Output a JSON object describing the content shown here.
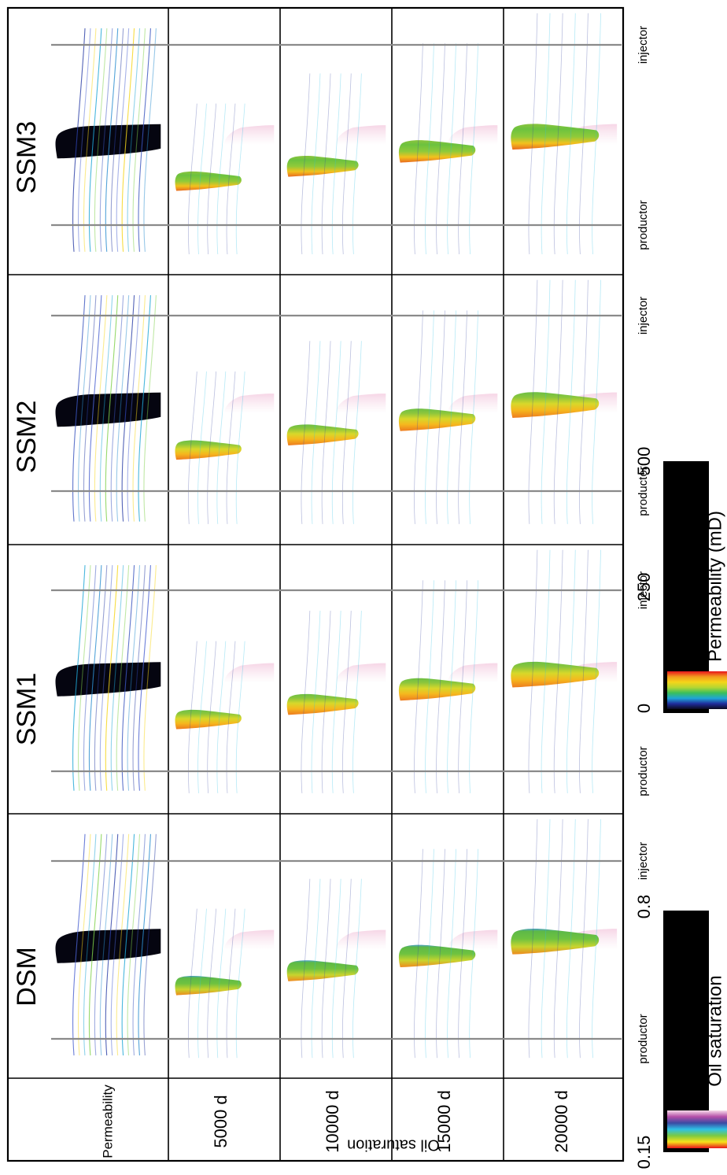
{
  "columns": [
    "DSM",
    "SSM1",
    "SSM2",
    "SSM3"
  ],
  "rows": {
    "group_label": "Oil saturation",
    "permeability_label": "Permeability",
    "times": [
      "5000 d",
      "10000 d",
      "15000 d",
      "20000 d"
    ]
  },
  "well_labels": {
    "left": "injector",
    "right": "productor"
  },
  "colorbars": {
    "oil_saturation": {
      "title": "Oil saturation",
      "min_label": "0.15",
      "max_label": "0.8",
      "stops": [
        "#e8141c",
        "#f7e21a",
        "#7ac943",
        "#2fc1e6",
        "#3b4ba3",
        "#b44ea8",
        "#f7dbe9"
      ]
    },
    "permeability": {
      "title": "Permeability (mD)",
      "tick_labels": [
        "0",
        "250",
        "500"
      ],
      "stops": [
        "#0a0a1e",
        "#1f2d9c",
        "#1fa6d6",
        "#3bbf5a",
        "#b4d633",
        "#f5d519",
        "#f39a1e",
        "#e8141c"
      ]
    }
  },
  "colors": {
    "reservoir_black": "#050510",
    "well_line": "#8a8a8a",
    "frame": "#000000"
  }
}
